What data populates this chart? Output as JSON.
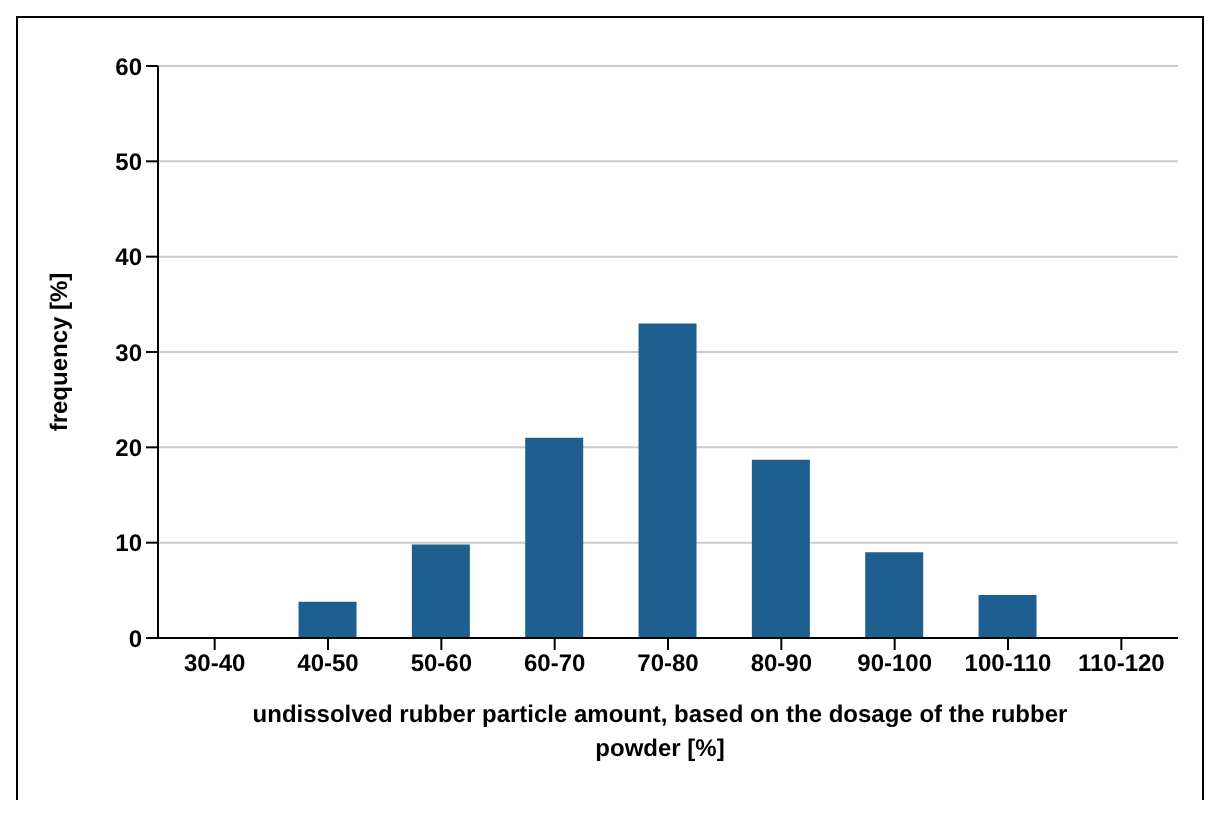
{
  "chart_data": {
    "type": "bar",
    "xlabel": "undissolved rubber particle amount, based on the dosage of the rubber powder [%]",
    "ylabel": "frequency [%]",
    "categories": [
      "30-40",
      "40-50",
      "50-60",
      "60-70",
      "70-80",
      "80-90",
      "90-100",
      "100-110",
      "110-120"
    ],
    "values": [
      0,
      3.8,
      9.8,
      21,
      33,
      18.7,
      9,
      4.5,
      0
    ],
    "color": "#1f5f8f",
    "ylim": [
      0,
      60
    ],
    "yticks": [
      0,
      10,
      20,
      30,
      40,
      50,
      60
    ],
    "grid": "y"
  }
}
